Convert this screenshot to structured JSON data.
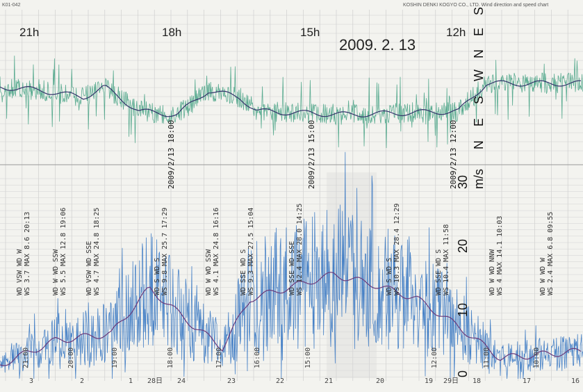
{
  "header": {
    "code": "K01-042",
    "maker": "KOSHIN DENKI KOGYO CO., LTD.  Wind direction and speed chart"
  },
  "date": "2009. 2. 13",
  "time_labels": [
    "21h",
    "18h",
    "15h",
    "12h"
  ],
  "direction_labels": [
    "N",
    "E",
    "S",
    "W",
    "N",
    "E",
    "S"
  ],
  "speed_unit": "m/s",
  "speed_scale": [
    "0",
    "10",
    "20",
    "30"
  ],
  "stamps": [
    "2009/2/13 18:00",
    "2009/2/13 15:00",
    "2009/2/13 12:00"
  ],
  "records": [
    [
      "WS 3.7 MAX 8.6 20:13",
      "WD VSW WD W"
    ],
    [
      "WS 5.5 MAX 12.8 19:06",
      "WD W WD SSW"
    ],
    [
      "WS 4.7 MAX 24.8 18:25",
      "WD VSW WD SSE"
    ],
    [
      "WS 9.8 MAX 25.7 17:29",
      "WD S WD S"
    ],
    [
      "WS 4.1 MAX 24.8 16:16",
      "WD W WD SSW"
    ],
    [
      "WS 9.3 MAX 27.5 15:04",
      "WD SSE WD S"
    ],
    [
      "WS 12.4 MAX 28.0 14:25",
      "WD SSE WD SSE"
    ],
    [
      "WS 10.3 MAX 28.4 12:29",
      "WD S WD S"
    ],
    [
      "WS 10.4 MAX 11:58",
      "WD SSE WD S"
    ],
    [
      "WS 4 MAX 14.1 10:03",
      "WD W WD NNW"
    ],
    [
      "WS 2.4 MAX 6.8 09:55",
      "WD W WD W"
    ]
  ],
  "bottom_hours": [
    "21:00",
    "20:00",
    "19:00",
    "18:00",
    "17:00",
    "16:00",
    "15:00",
    "12:00",
    "11:00",
    "10:00"
  ],
  "bottom_days": [
    "3",
    "2",
    "1",
    "28日",
    "24",
    "23",
    "22",
    "21",
    "20",
    "19",
    "29日",
    "18",
    "17",
    "16"
  ]
}
